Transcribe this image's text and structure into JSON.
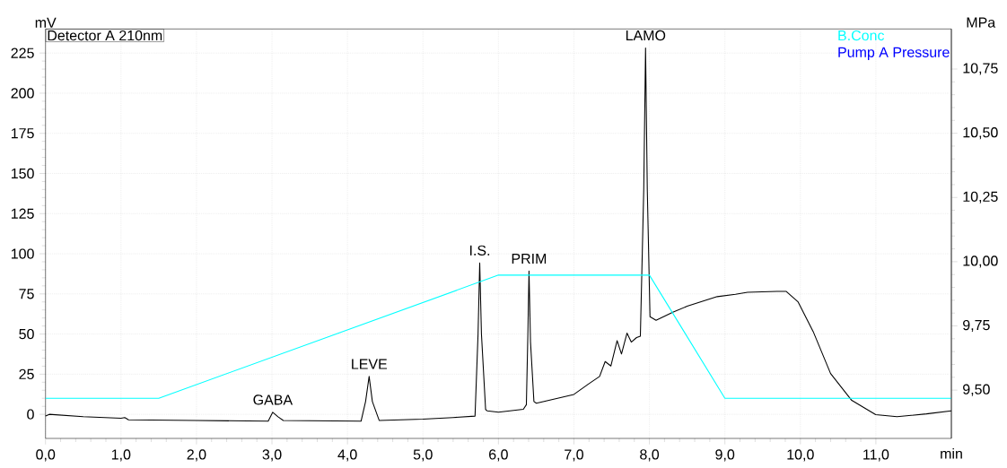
{
  "chart_data": {
    "type": "line",
    "xlabel": "min",
    "ylabel": "mV",
    "y2label": "MPa",
    "xlim": [
      0,
      12
    ],
    "ylim": [
      -15,
      240
    ],
    "y2lim": [
      9.312,
      10.906
    ],
    "xticks": [
      {
        "value": 0,
        "label": "0,0"
      },
      {
        "value": 1,
        "label": "1,0"
      },
      {
        "value": 2,
        "label": "2,0"
      },
      {
        "value": 3,
        "label": "3,0"
      },
      {
        "value": 4,
        "label": "4,0"
      },
      {
        "value": 5,
        "label": "5,0"
      },
      {
        "value": 6,
        "label": "6,0"
      },
      {
        "value": 7,
        "label": "7,0"
      },
      {
        "value": 8,
        "label": "8,0"
      },
      {
        "value": 9,
        "label": "9,0"
      },
      {
        "value": 10,
        "label": "10,0"
      },
      {
        "value": 11,
        "label": "11,0"
      }
    ],
    "yticks": [
      0,
      25,
      50,
      75,
      100,
      125,
      150,
      175,
      200,
      225
    ],
    "y2ticks": [
      {
        "value": 9.5,
        "label": "9,50"
      },
      {
        "value": 9.75,
        "label": "9,75"
      },
      {
        "value": 10.0,
        "label": "10,00"
      },
      {
        "value": 10.25,
        "label": "10,25"
      },
      {
        "value": 10.5,
        "label": "10,50"
      },
      {
        "value": 10.75,
        "label": "10,75"
      }
    ],
    "grid": true,
    "legend": "top right",
    "series": [
      {
        "name": "Detector A 210nm",
        "color": "#000000",
        "x": [
          0.0,
          0.05,
          0.5,
          1.0,
          1.05,
          1.1,
          2.0,
          2.95,
          3.01,
          3.08,
          3.15,
          4.18,
          4.24,
          4.287,
          4.33,
          4.42,
          5.0,
          5.4,
          5.69,
          5.73,
          5.752,
          5.775,
          5.83,
          5.85,
          6.0,
          6.33,
          6.37,
          6.39,
          6.405,
          6.425,
          6.47,
          6.503,
          7.0,
          7.196,
          7.34,
          7.414,
          7.49,
          7.572,
          7.63,
          7.703,
          7.76,
          7.83,
          7.88,
          7.925,
          7.949,
          7.972,
          8.008,
          8.088,
          8.31,
          8.5,
          8.899,
          9.14,
          9.3,
          9.69,
          9.81,
          9.968,
          10.17,
          10.4,
          10.68,
          10.998,
          11.28,
          11.67,
          12.0
        ],
        "values": [
          -1.0,
          0.0,
          -1.5,
          -2.4,
          -2.0,
          -3.4,
          -3.8,
          -4.3,
          1.3,
          -1.5,
          -3.8,
          -4.3,
          8,
          23.6,
          8,
          -3.8,
          -3.0,
          -2.0,
          -1.1,
          50,
          94.3,
          50,
          3,
          2.2,
          1.3,
          3.1,
          6,
          50,
          89.3,
          45,
          8,
          6.9,
          12.4,
          19,
          23.6,
          32.9,
          30.1,
          45.9,
          37.6,
          50.6,
          45,
          47.8,
          48.7,
          140,
          228.2,
          140,
          60.8,
          58.6,
          63.6,
          67.3,
          73.3,
          74.8,
          76,
          76.6,
          76.6,
          70.1,
          51.5,
          25.4,
          8.7,
          -0.2,
          -1.5,
          0.3,
          2.2
        ]
      },
      {
        "name": "B.Conc",
        "color": "#00ffff",
        "x": [
          0,
          1.5,
          6.0,
          8.0,
          9.0,
          12.0
        ],
        "values": [
          10,
          10,
          86.7,
          86.7,
          10,
          10
        ]
      },
      {
        "name": "Pump A Pressure",
        "color": "#0000ff"
      }
    ],
    "annotations": [
      {
        "text": "GABA",
        "x": 3.01,
        "y": 1.3
      },
      {
        "text": "LEVE",
        "x": 4.287,
        "y": 23.6
      },
      {
        "text": "I.S.",
        "x": 5.752,
        "y": 94.3
      },
      {
        "text": "PRIM",
        "x": 6.405,
        "y": 89.3
      },
      {
        "text": "LAMO",
        "x": 7.949,
        "y": 228.2
      }
    ]
  }
}
